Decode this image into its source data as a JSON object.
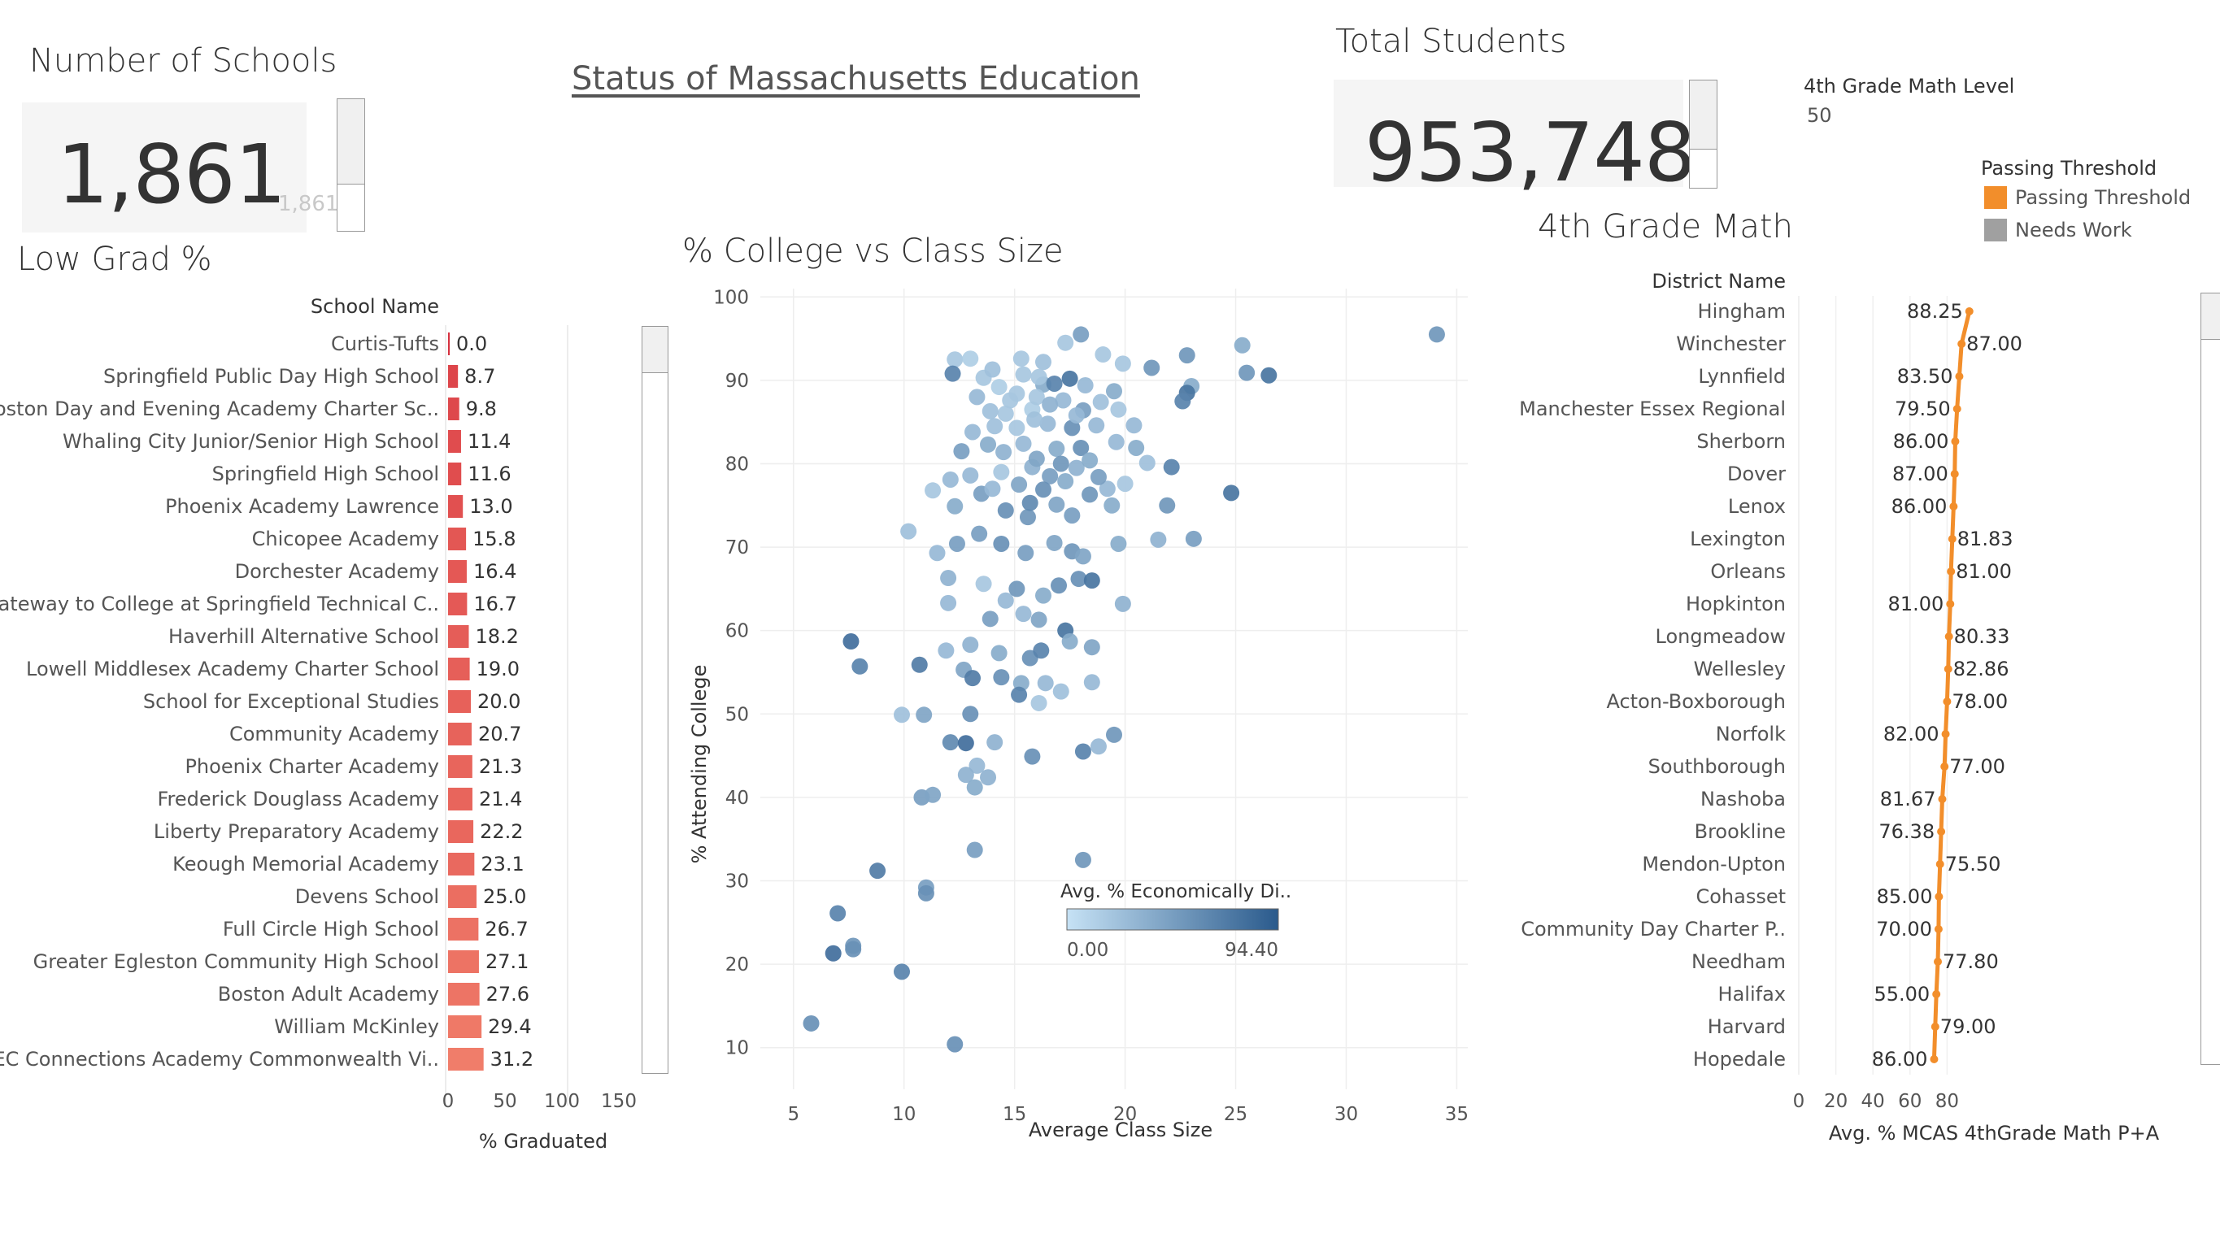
{
  "dashboard_title": "Status of Massachusetts Education",
  "kpis": {
    "schools": {
      "title": "Number of Schools",
      "value": "1,861",
      "ghost": "1,861"
    },
    "students": {
      "title": "Total Students",
      "value": "953,748"
    }
  },
  "math_level": {
    "label": "4th Grade Math Level",
    "value": "50"
  },
  "passing_legend": {
    "title": "Passing Threshold",
    "items": [
      {
        "label": "Passing Threshold",
        "color": "#f28e2b"
      },
      {
        "label": "Needs Work",
        "color": "#a0a0a0"
      }
    ]
  },
  "chart_data": [
    {
      "type": "bar",
      "title": "Low Grad %",
      "category_header": "School Name",
      "xlabel": "% Graduated",
      "xlim": [
        0,
        175
      ],
      "xticks": [
        0,
        50,
        100,
        150
      ],
      "categories": [
        "Curtis-Tufts",
        "Springfield Public Day High School",
        "Boston Day and Evening Academy Charter Sc..",
        "Whaling City Junior/Senior High School",
        "Springfield High School",
        "Phoenix Academy Lawrence",
        "Chicopee Academy",
        "Dorchester Academy",
        "Gateway to College at Springfield Technical C..",
        "Haverhill Alternative School",
        "Lowell Middlesex Academy Charter School",
        "School for Exceptional Studies",
        "Community Academy",
        "Phoenix Charter Academy",
        "Frederick Douglass Academy",
        "Liberty Preparatory Academy",
        "Keough Memorial Academy",
        "Devens School",
        "Full Circle High School",
        "Greater Egleston Community High School",
        "Boston Adult Academy",
        "William McKinley",
        "TEC Connections Academy Commonwealth Vi.."
      ],
      "values": [
        0.0,
        8.7,
        9.8,
        11.4,
        11.6,
        13.0,
        15.8,
        16.4,
        16.7,
        18.2,
        19.0,
        20.0,
        20.7,
        21.3,
        21.4,
        22.2,
        23.1,
        25.0,
        26.7,
        27.1,
        27.6,
        29.4,
        31.2
      ],
      "labels": [
        "0.0",
        "8.7",
        "9.8",
        "11.4",
        "11.6",
        "13.0",
        "15.8",
        "16.4",
        "16.7",
        "18.2",
        "19.0",
        "20.0",
        "20.7",
        "21.3",
        "21.4",
        "22.2",
        "23.1",
        "25.0",
        "26.7",
        "27.1",
        "27.6",
        "29.4",
        "31.2"
      ],
      "color_scale": [
        "#d6303e",
        "#f07d6a"
      ]
    },
    {
      "type": "scatter",
      "title": "% College vs Class Size",
      "xlabel": "Average Class Size",
      "ylabel": "% Attending College",
      "xlim": [
        3.5,
        35.5
      ],
      "ylim": [
        5,
        101
      ],
      "xticks": [
        5,
        10,
        15,
        20,
        25,
        30,
        35
      ],
      "yticks": [
        10,
        20,
        30,
        40,
        50,
        60,
        70,
        80,
        90,
        100
      ],
      "color_legend": {
        "title": "Avg. % Economically Di..",
        "min": "0.00",
        "max": "94.40",
        "colors": [
          "#c6e2f5",
          "#2a5a8c"
        ]
      },
      "points": [
        [
          34.1,
          95.5,
          0.55
        ],
        [
          25.3,
          94.2,
          0.4
        ],
        [
          25.5,
          90.9,
          0.55
        ],
        [
          26.5,
          90.6,
          0.8
        ],
        [
          23.0,
          89.3,
          0.4
        ],
        [
          22.8,
          88.5,
          0.8
        ],
        [
          22.6,
          87.5,
          0.7
        ],
        [
          22.8,
          93.0,
          0.55
        ],
        [
          18.0,
          95.5,
          0.5
        ],
        [
          21.2,
          91.5,
          0.55
        ],
        [
          12.3,
          92.5,
          0.2
        ],
        [
          13.0,
          92.6,
          0.15
        ],
        [
          13.6,
          90.3,
          0.2
        ],
        [
          12.2,
          90.8,
          0.7
        ],
        [
          14.0,
          91.3,
          0.25
        ],
        [
          15.3,
          92.6,
          0.2
        ],
        [
          16.3,
          92.2,
          0.25
        ],
        [
          17.3,
          94.5,
          0.2
        ],
        [
          19.0,
          93.1,
          0.2
        ],
        [
          19.9,
          92.0,
          0.2
        ],
        [
          14.3,
          89.2,
          0.15
        ],
        [
          15.4,
          90.7,
          0.2
        ],
        [
          16.3,
          89.5,
          0.4
        ],
        [
          16.8,
          89.6,
          0.7
        ],
        [
          17.5,
          90.2,
          0.8
        ],
        [
          18.2,
          89.4,
          0.3
        ],
        [
          19.5,
          88.7,
          0.4
        ],
        [
          13.3,
          88.0,
          0.3
        ],
        [
          14.8,
          87.6,
          0.2
        ],
        [
          15.8,
          86.5,
          0.15
        ],
        [
          16.0,
          88.0,
          0.2
        ],
        [
          17.2,
          87.6,
          0.3
        ],
        [
          18.1,
          86.4,
          0.5
        ],
        [
          19.7,
          86.5,
          0.2
        ],
        [
          13.1,
          83.8,
          0.3
        ],
        [
          14.1,
          84.5,
          0.25
        ],
        [
          15.1,
          84.3,
          0.2
        ],
        [
          16.5,
          84.8,
          0.3
        ],
        [
          17.6,
          84.3,
          0.6
        ],
        [
          18.7,
          84.6,
          0.3
        ],
        [
          20.4,
          84.6,
          0.3
        ],
        [
          12.6,
          81.5,
          0.5
        ],
        [
          13.8,
          82.3,
          0.4
        ],
        [
          15.4,
          82.4,
          0.3
        ],
        [
          16.9,
          81.8,
          0.4
        ],
        [
          18.0,
          81.9,
          0.6
        ],
        [
          20.5,
          81.9,
          0.4
        ],
        [
          11.3,
          76.8,
          0.2
        ],
        [
          12.1,
          78.1,
          0.3
        ],
        [
          13.0,
          78.6,
          0.3
        ],
        [
          14.4,
          79.0,
          0.2
        ],
        [
          15.8,
          79.6,
          0.35
        ],
        [
          16.6,
          78.5,
          0.5
        ],
        [
          17.8,
          79.5,
          0.35
        ],
        [
          19.2,
          77.0,
          0.3
        ],
        [
          20.0,
          77.6,
          0.2
        ],
        [
          21.0,
          80.1,
          0.25
        ],
        [
          22.1,
          79.6,
          0.7
        ],
        [
          12.3,
          74.9,
          0.4
        ],
        [
          13.5,
          76.4,
          0.5
        ],
        [
          14.6,
          74.4,
          0.6
        ],
        [
          15.6,
          73.6,
          0.55
        ],
        [
          16.9,
          75.1,
          0.45
        ],
        [
          18.4,
          76.3,
          0.55
        ],
        [
          19.4,
          75.0,
          0.4
        ],
        [
          21.9,
          75.0,
          0.55
        ],
        [
          24.8,
          76.5,
          0.8
        ],
        [
          10.2,
          71.9,
          0.25
        ],
        [
          11.5,
          69.3,
          0.3
        ],
        [
          12.4,
          70.4,
          0.5
        ],
        [
          13.4,
          71.6,
          0.5
        ],
        [
          14.4,
          70.4,
          0.6
        ],
        [
          15.5,
          69.3,
          0.5
        ],
        [
          16.8,
          70.5,
          0.45
        ],
        [
          17.6,
          69.5,
          0.55
        ],
        [
          18.1,
          68.9,
          0.45
        ],
        [
          19.7,
          70.4,
          0.4
        ],
        [
          21.5,
          70.9,
          0.35
        ],
        [
          23.1,
          71.0,
          0.5
        ],
        [
          12.0,
          66.3,
          0.35
        ],
        [
          13.6,
          65.6,
          0.2
        ],
        [
          14.6,
          63.6,
          0.3
        ],
        [
          15.1,
          65.0,
          0.55
        ],
        [
          16.3,
          64.2,
          0.4
        ],
        [
          17.0,
          65.4,
          0.6
        ],
        [
          17.9,
          66.2,
          0.6
        ],
        [
          18.5,
          66.0,
          0.8
        ],
        [
          19.9,
          63.2,
          0.35
        ],
        [
          12.0,
          63.3,
          0.3
        ],
        [
          13.9,
          61.4,
          0.5
        ],
        [
          15.4,
          62.0,
          0.3
        ],
        [
          16.1,
          61.3,
          0.45
        ],
        [
          17.3,
          60.0,
          0.8
        ],
        [
          7.6,
          58.7,
          0.85
        ],
        [
          8.0,
          55.7,
          0.7
        ],
        [
          10.7,
          55.9,
          0.75
        ],
        [
          11.9,
          57.6,
          0.3
        ],
        [
          13.0,
          58.3,
          0.35
        ],
        [
          14.3,
          57.3,
          0.4
        ],
        [
          15.7,
          56.7,
          0.6
        ],
        [
          16.2,
          57.6,
          0.7
        ],
        [
          17.5,
          58.7,
          0.4
        ],
        [
          18.5,
          58.0,
          0.45
        ],
        [
          12.7,
          55.3,
          0.45
        ],
        [
          13.1,
          54.3,
          0.75
        ],
        [
          14.4,
          54.4,
          0.6
        ],
        [
          15.3,
          53.7,
          0.4
        ],
        [
          16.4,
          53.7,
          0.3
        ],
        [
          17.1,
          52.7,
          0.25
        ],
        [
          18.5,
          53.8,
          0.3
        ],
        [
          9.9,
          49.9,
          0.25
        ],
        [
          10.9,
          49.9,
          0.45
        ],
        [
          12.1,
          46.6,
          0.65
        ],
        [
          13.0,
          50.0,
          0.6
        ],
        [
          14.1,
          46.6,
          0.35
        ],
        [
          15.2,
          52.3,
          0.7
        ],
        [
          16.1,
          51.3,
          0.2
        ],
        [
          18.8,
          46.1,
          0.3
        ],
        [
          19.5,
          47.5,
          0.55
        ],
        [
          12.8,
          46.5,
          0.85
        ],
        [
          13.3,
          43.8,
          0.3
        ],
        [
          12.8,
          42.7,
          0.35
        ],
        [
          13.8,
          42.4,
          0.35
        ],
        [
          13.2,
          41.2,
          0.4
        ],
        [
          10.8,
          40.0,
          0.5
        ],
        [
          11.3,
          40.3,
          0.45
        ],
        [
          15.8,
          44.9,
          0.6
        ],
        [
          18.1,
          45.5,
          0.7
        ],
        [
          13.2,
          33.7,
          0.5
        ],
        [
          18.1,
          32.5,
          0.55
        ],
        [
          8.8,
          31.2,
          0.75
        ],
        [
          11.0,
          29.2,
          0.5
        ],
        [
          11.0,
          28.5,
          0.6
        ],
        [
          7.0,
          26.1,
          0.7
        ],
        [
          7.7,
          22.2,
          0.55
        ],
        [
          6.8,
          21.3,
          0.85
        ],
        [
          7.7,
          21.8,
          0.6
        ],
        [
          9.9,
          19.1,
          0.7
        ],
        [
          5.8,
          12.9,
          0.6
        ],
        [
          12.3,
          10.4,
          0.6
        ],
        [
          14.6,
          86.0,
          0.2
        ],
        [
          15.9,
          85.3,
          0.25
        ],
        [
          16.6,
          87.1,
          0.35
        ],
        [
          13.9,
          86.3,
          0.25
        ],
        [
          17.8,
          85.8,
          0.3
        ],
        [
          18.9,
          87.4,
          0.25
        ],
        [
          15.1,
          88.4,
          0.2
        ],
        [
          16.1,
          90.4,
          0.2
        ],
        [
          14.5,
          81.4,
          0.35
        ],
        [
          16.0,
          80.6,
          0.45
        ],
        [
          17.1,
          80.0,
          0.55
        ],
        [
          18.4,
          80.4,
          0.4
        ],
        [
          19.6,
          82.6,
          0.3
        ],
        [
          15.2,
          77.5,
          0.45
        ],
        [
          16.3,
          76.9,
          0.6
        ],
        [
          17.3,
          77.9,
          0.4
        ],
        [
          18.8,
          78.4,
          0.5
        ],
        [
          14.0,
          77.0,
          0.3
        ],
        [
          15.7,
          75.3,
          0.65
        ],
        [
          17.6,
          73.8,
          0.5
        ]
      ]
    },
    {
      "type": "line",
      "title": "4th Grade Math",
      "category_header": "District Name",
      "xlabel": "Avg. % MCAS 4thGrade Math P+A",
      "xlim": [
        0,
        100
      ],
      "xticks": [
        0,
        20,
        40,
        60,
        80
      ],
      "categories": [
        "Hingham",
        "Winchester",
        "Lynnfield",
        "Manchester Essex Regional",
        "Sherborn",
        "Dover",
        "Lenox",
        "Lexington",
        "Orleans",
        "Hopkinton",
        "Longmeadow",
        "Wellesley",
        "Acton-Boxborough",
        "Norfolk",
        "Southborough",
        "Nashoba",
        "Brookline",
        "Mendon-Upton",
        "Cohasset",
        "Community Day Charter P..",
        "Needham",
        "Halifax",
        "Harvard",
        "Hopedale"
      ],
      "line_values": [
        92.0,
        87.8,
        86.6,
        85.4,
        84.4,
        84.1,
        83.5,
        82.8,
        82.1,
        81.7,
        81.0,
        80.6,
        80.0,
        79.2,
        78.6,
        77.4,
        76.8,
        76.2,
        75.6,
        75.4,
        75.0,
        74.2,
        73.6,
        73.0
      ],
      "labels": [
        "88.25",
        "87.00",
        "83.50",
        "79.50",
        "86.00",
        "87.00",
        "86.00",
        "81.83",
        "81.00",
        "81.00",
        "80.33",
        "82.86",
        "78.00",
        "82.00",
        "77.00",
        "81.67",
        "76.38",
        "75.50",
        "85.00",
        "70.00",
        "77.80",
        "55.00",
        "79.00",
        "86.00"
      ],
      "label_side": [
        "left",
        "right",
        "left",
        "left",
        "left",
        "left",
        "left",
        "right",
        "right",
        "left",
        "right",
        "right",
        "right",
        "left",
        "right",
        "left",
        "left",
        "right",
        "left",
        "left",
        "right",
        "left",
        "right",
        "left"
      ],
      "color": "#f28e2b"
    }
  ]
}
